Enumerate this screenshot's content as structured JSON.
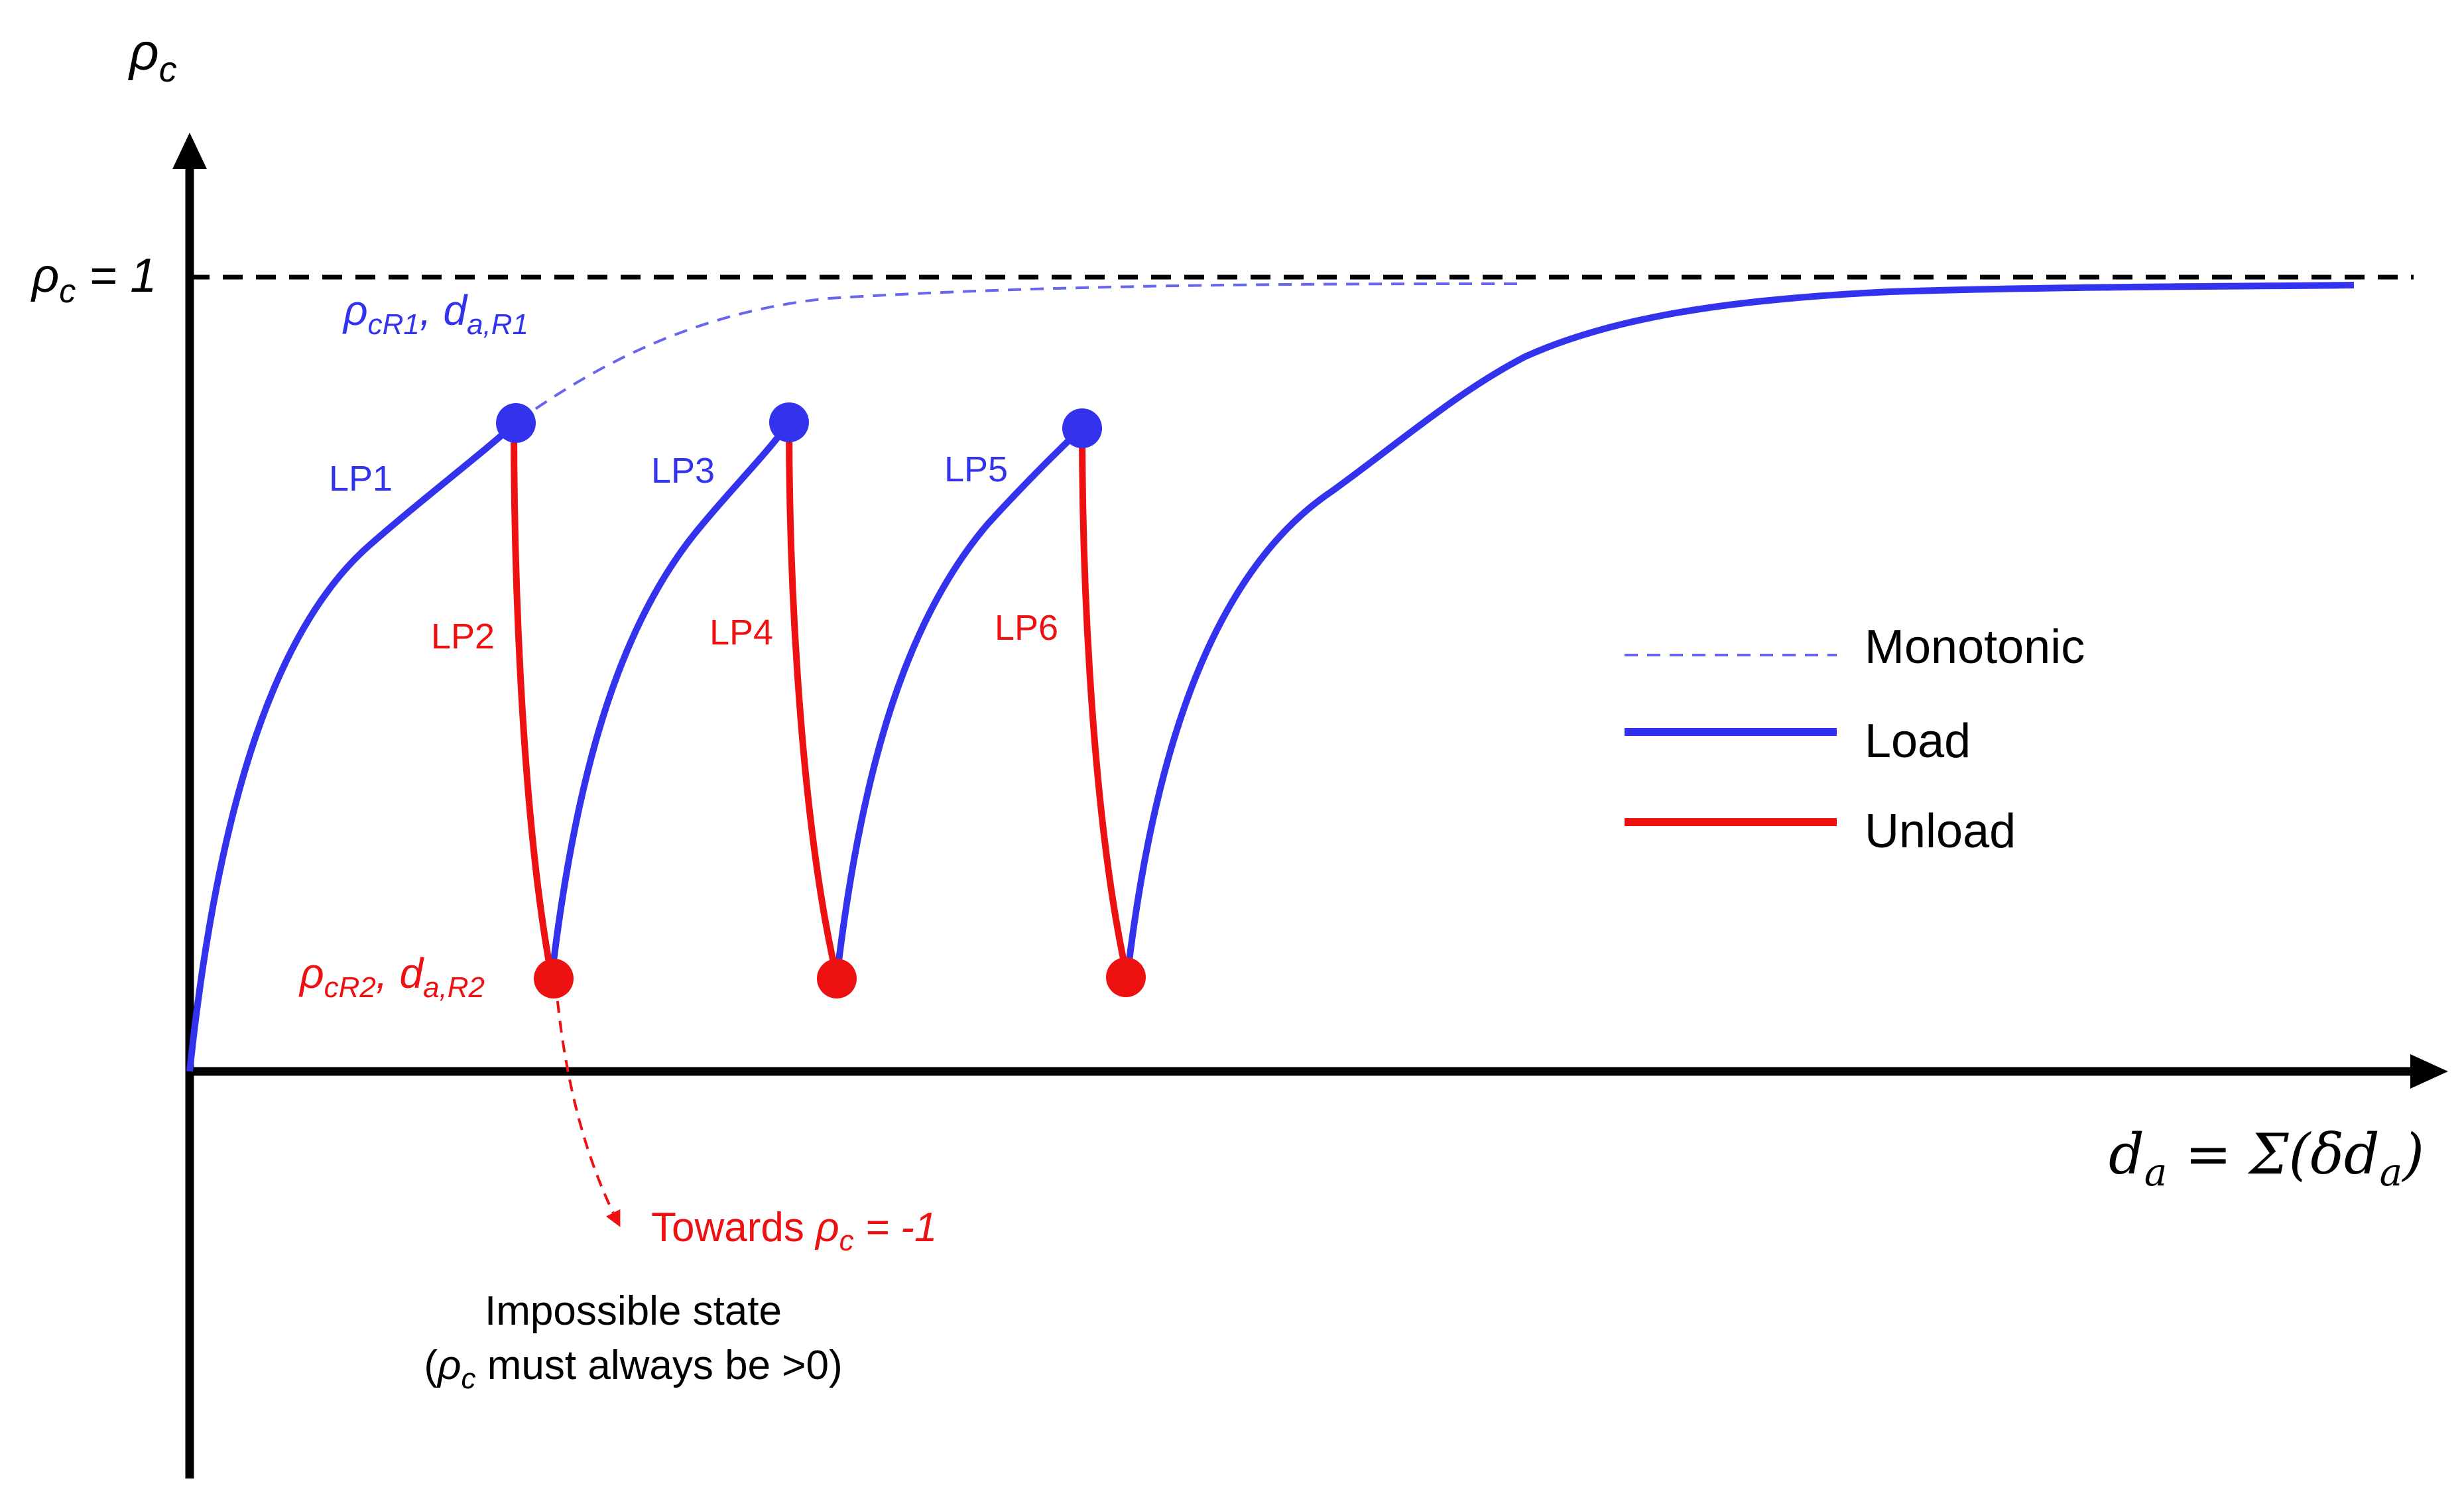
{
  "colors": {
    "load": "#3333ee",
    "unload": "#ee1111",
    "monotonic": "#6666ee",
    "axis": "#000000",
    "text": "#000000"
  },
  "axes": {
    "y_symbol": "ρ",
    "y_sub": "c",
    "x_formula_left": "d",
    "x_formula_sub": "a",
    "x_formula_mid": " = Σ(δd",
    "x_formula_sub2": "a",
    "x_formula_end": ")"
  },
  "reference_line": {
    "label_rho": "ρ",
    "label_sub": "c",
    "label_rest": " = 1"
  },
  "annotations": {
    "r1_rho": "ρ",
    "r1_rho_sub": "cR1",
    "r1_comma": ", ",
    "r1_d": "d",
    "r1_d_sub": "a,R1",
    "r2_rho": "ρ",
    "r2_rho_sub": "cR2",
    "r2_comma": ", ",
    "r2_d": "d",
    "r2_d_sub": "a,R2",
    "towards_prefix": "Towards ",
    "towards_rho": "ρ",
    "towards_sub": "c",
    "towards_rest": " = -1",
    "impossible_line1": "Impossible state",
    "impossible_line2_open": "(",
    "impossible_rho": "ρ",
    "impossible_sub": "c",
    "impossible_line2_rest": " must always be >0)"
  },
  "segments": {
    "lp1": "LP1",
    "lp2": "LP2",
    "lp3": "LP3",
    "lp4": "LP4",
    "lp5": "LP5",
    "lp6": "LP6"
  },
  "legend": {
    "monotonic": "Monotonic",
    "load": "Load",
    "unload": "Unload"
  }
}
